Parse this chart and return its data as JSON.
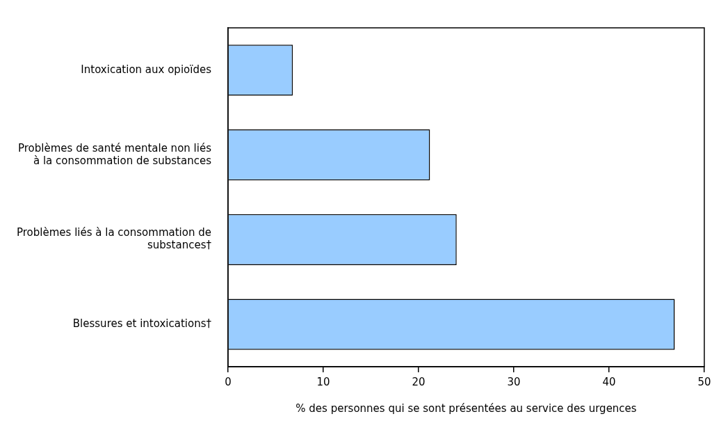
{
  "chart_data": {
    "type": "bar",
    "orientation": "horizontal",
    "xlabel": "% des personnes qui se sont présentées au service des urgences",
    "categories": [
      "Intoxication aux opioïdes",
      "Problèmes de santé mentale non liés à la consommation de substances",
      "Problèmes liés à la consommation de substances†",
      "Blessures et intoxications†"
    ],
    "values": [
      6.8,
      21.2,
      24.0,
      46.9
    ],
    "color": "#99ccff",
    "xlim": [
      0,
      50
    ],
    "xticks": [
      0,
      10,
      20,
      30,
      40,
      50
    ],
    "grid": false,
    "legend": false
  }
}
